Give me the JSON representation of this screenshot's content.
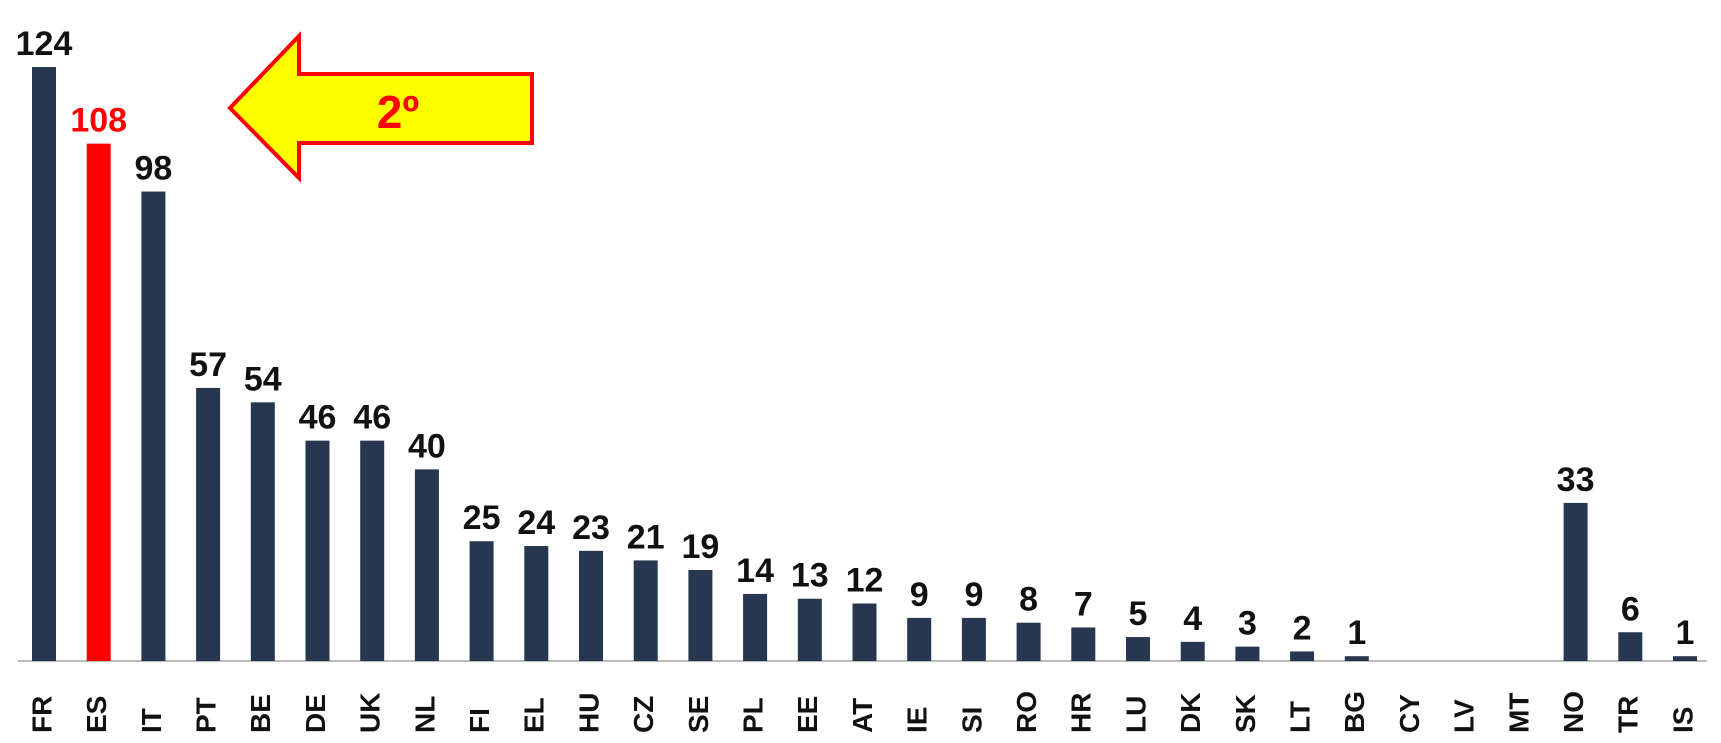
{
  "chart_data": {
    "type": "bar",
    "categories": [
      "FR",
      "ES",
      "IT",
      "PT",
      "BE",
      "DE",
      "UK",
      "NL",
      "FI",
      "EL",
      "HU",
      "CZ",
      "SE",
      "PL",
      "EE",
      "AT",
      "IE",
      "SI",
      "RO",
      "HR",
      "LU",
      "DK",
      "SK",
      "LT",
      "BG",
      "CY",
      "LV",
      "MT",
      "NO",
      "TR",
      "IS"
    ],
    "values": [
      124,
      108,
      98,
      57,
      54,
      46,
      46,
      40,
      25,
      24,
      23,
      21,
      19,
      14,
      13,
      12,
      9,
      9,
      8,
      7,
      5,
      4,
      3,
      2,
      1,
      null,
      null,
      null,
      33,
      6,
      1
    ],
    "colors": [
      "#26374f",
      "#ff0000",
      "#26374f",
      "#26374f",
      "#26374f",
      "#26374f",
      "#26374f",
      "#26374f",
      "#26374f",
      "#26374f",
      "#26374f",
      "#26374f",
      "#26374f",
      "#26374f",
      "#26374f",
      "#26374f",
      "#26374f",
      "#26374f",
      "#26374f",
      "#26374f",
      "#26374f",
      "#26374f",
      "#26374f",
      "#26374f",
      "#26374f",
      "#26374f",
      "#26374f",
      "#26374f",
      "#26374f",
      "#26374f",
      "#26374f"
    ],
    "label_colors": [
      "#111111",
      "#ff0000",
      "#111111",
      "#111111",
      "#111111",
      "#111111",
      "#111111",
      "#111111",
      "#111111",
      "#111111",
      "#111111",
      "#111111",
      "#111111",
      "#111111",
      "#111111",
      "#111111",
      "#111111",
      "#111111",
      "#111111",
      "#111111",
      "#111111",
      "#111111",
      "#111111",
      "#111111",
      "#111111",
      "#111111",
      "#111111",
      "#111111",
      "#111111",
      "#111111",
      "#111111"
    ],
    "annotation": "2º"
  }
}
